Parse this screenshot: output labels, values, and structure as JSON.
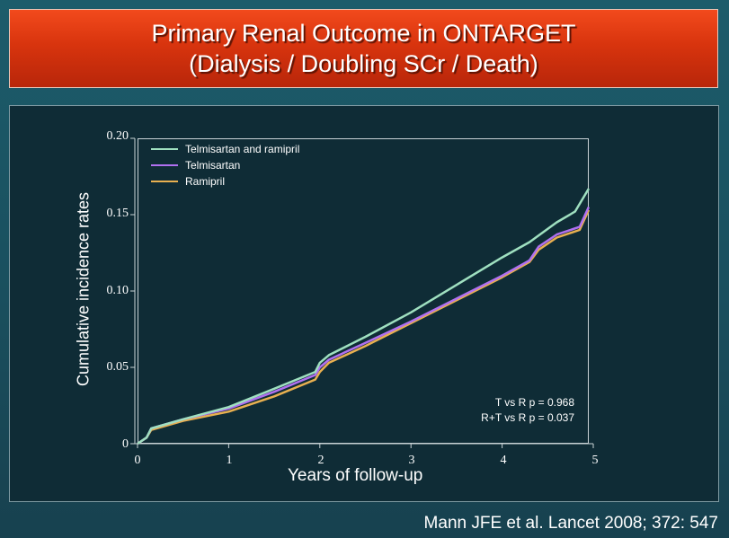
{
  "slide": {
    "title_line1": "Primary Renal Outcome in ONTARGET",
    "title_line2": "(Dialysis / Doubling SCr / Death)",
    "citation": "Mann JFE et al. Lancet 2008; 372: 547"
  },
  "annotations": {
    "p1": "T vs R p = 0.968",
    "p2": "R+T vs R p = 0.037"
  },
  "colors": {
    "title_bg": "#d8340e",
    "background": "#1a4f5e",
    "panel_bg": "#0f2c36"
  },
  "chart_data": {
    "type": "line",
    "xlabel": "Years of follow-up",
    "ylabel": "Cumulative incidence rates",
    "xlim": [
      0,
      5
    ],
    "ylim": [
      0,
      0.2
    ],
    "xticks": [
      "0",
      "1",
      "2",
      "3",
      "4",
      "5"
    ],
    "yticks": [
      "0",
      "0.05",
      "0.10",
      "0.15",
      "0.20"
    ],
    "legend_position": "top-left",
    "series": [
      {
        "name": "Telmisartan and ramipril",
        "color": "#9fe0c0",
        "x": [
          0,
          0.1,
          0.15,
          0.5,
          1.0,
          1.5,
          1.95,
          2.0,
          2.1,
          2.5,
          3.0,
          3.5,
          4.0,
          4.3,
          4.6,
          4.8,
          4.95
        ],
        "y": [
          0,
          0.004,
          0.01,
          0.016,
          0.024,
          0.036,
          0.047,
          0.053,
          0.058,
          0.07,
          0.086,
          0.104,
          0.122,
          0.132,
          0.145,
          0.152,
          0.167
        ]
      },
      {
        "name": "Telmisartan",
        "color": "#b070f0",
        "x": [
          0,
          0.1,
          0.15,
          0.5,
          1.0,
          1.5,
          1.95,
          2.0,
          2.1,
          2.5,
          3.0,
          3.5,
          4.0,
          4.3,
          4.4,
          4.6,
          4.85,
          4.95
        ],
        "y": [
          0,
          0.004,
          0.01,
          0.016,
          0.023,
          0.034,
          0.045,
          0.05,
          0.055,
          0.066,
          0.08,
          0.095,
          0.11,
          0.12,
          0.129,
          0.137,
          0.142,
          0.155
        ]
      },
      {
        "name": "Ramipril",
        "color": "#e8b050",
        "x": [
          0,
          0.1,
          0.15,
          0.5,
          1.0,
          1.5,
          1.95,
          2.0,
          2.1,
          2.5,
          3.0,
          3.5,
          4.0,
          4.3,
          4.4,
          4.6,
          4.85,
          4.95
        ],
        "y": [
          0,
          0.004,
          0.009,
          0.015,
          0.021,
          0.031,
          0.042,
          0.047,
          0.053,
          0.064,
          0.079,
          0.094,
          0.109,
          0.119,
          0.127,
          0.135,
          0.14,
          0.153
        ]
      }
    ]
  }
}
